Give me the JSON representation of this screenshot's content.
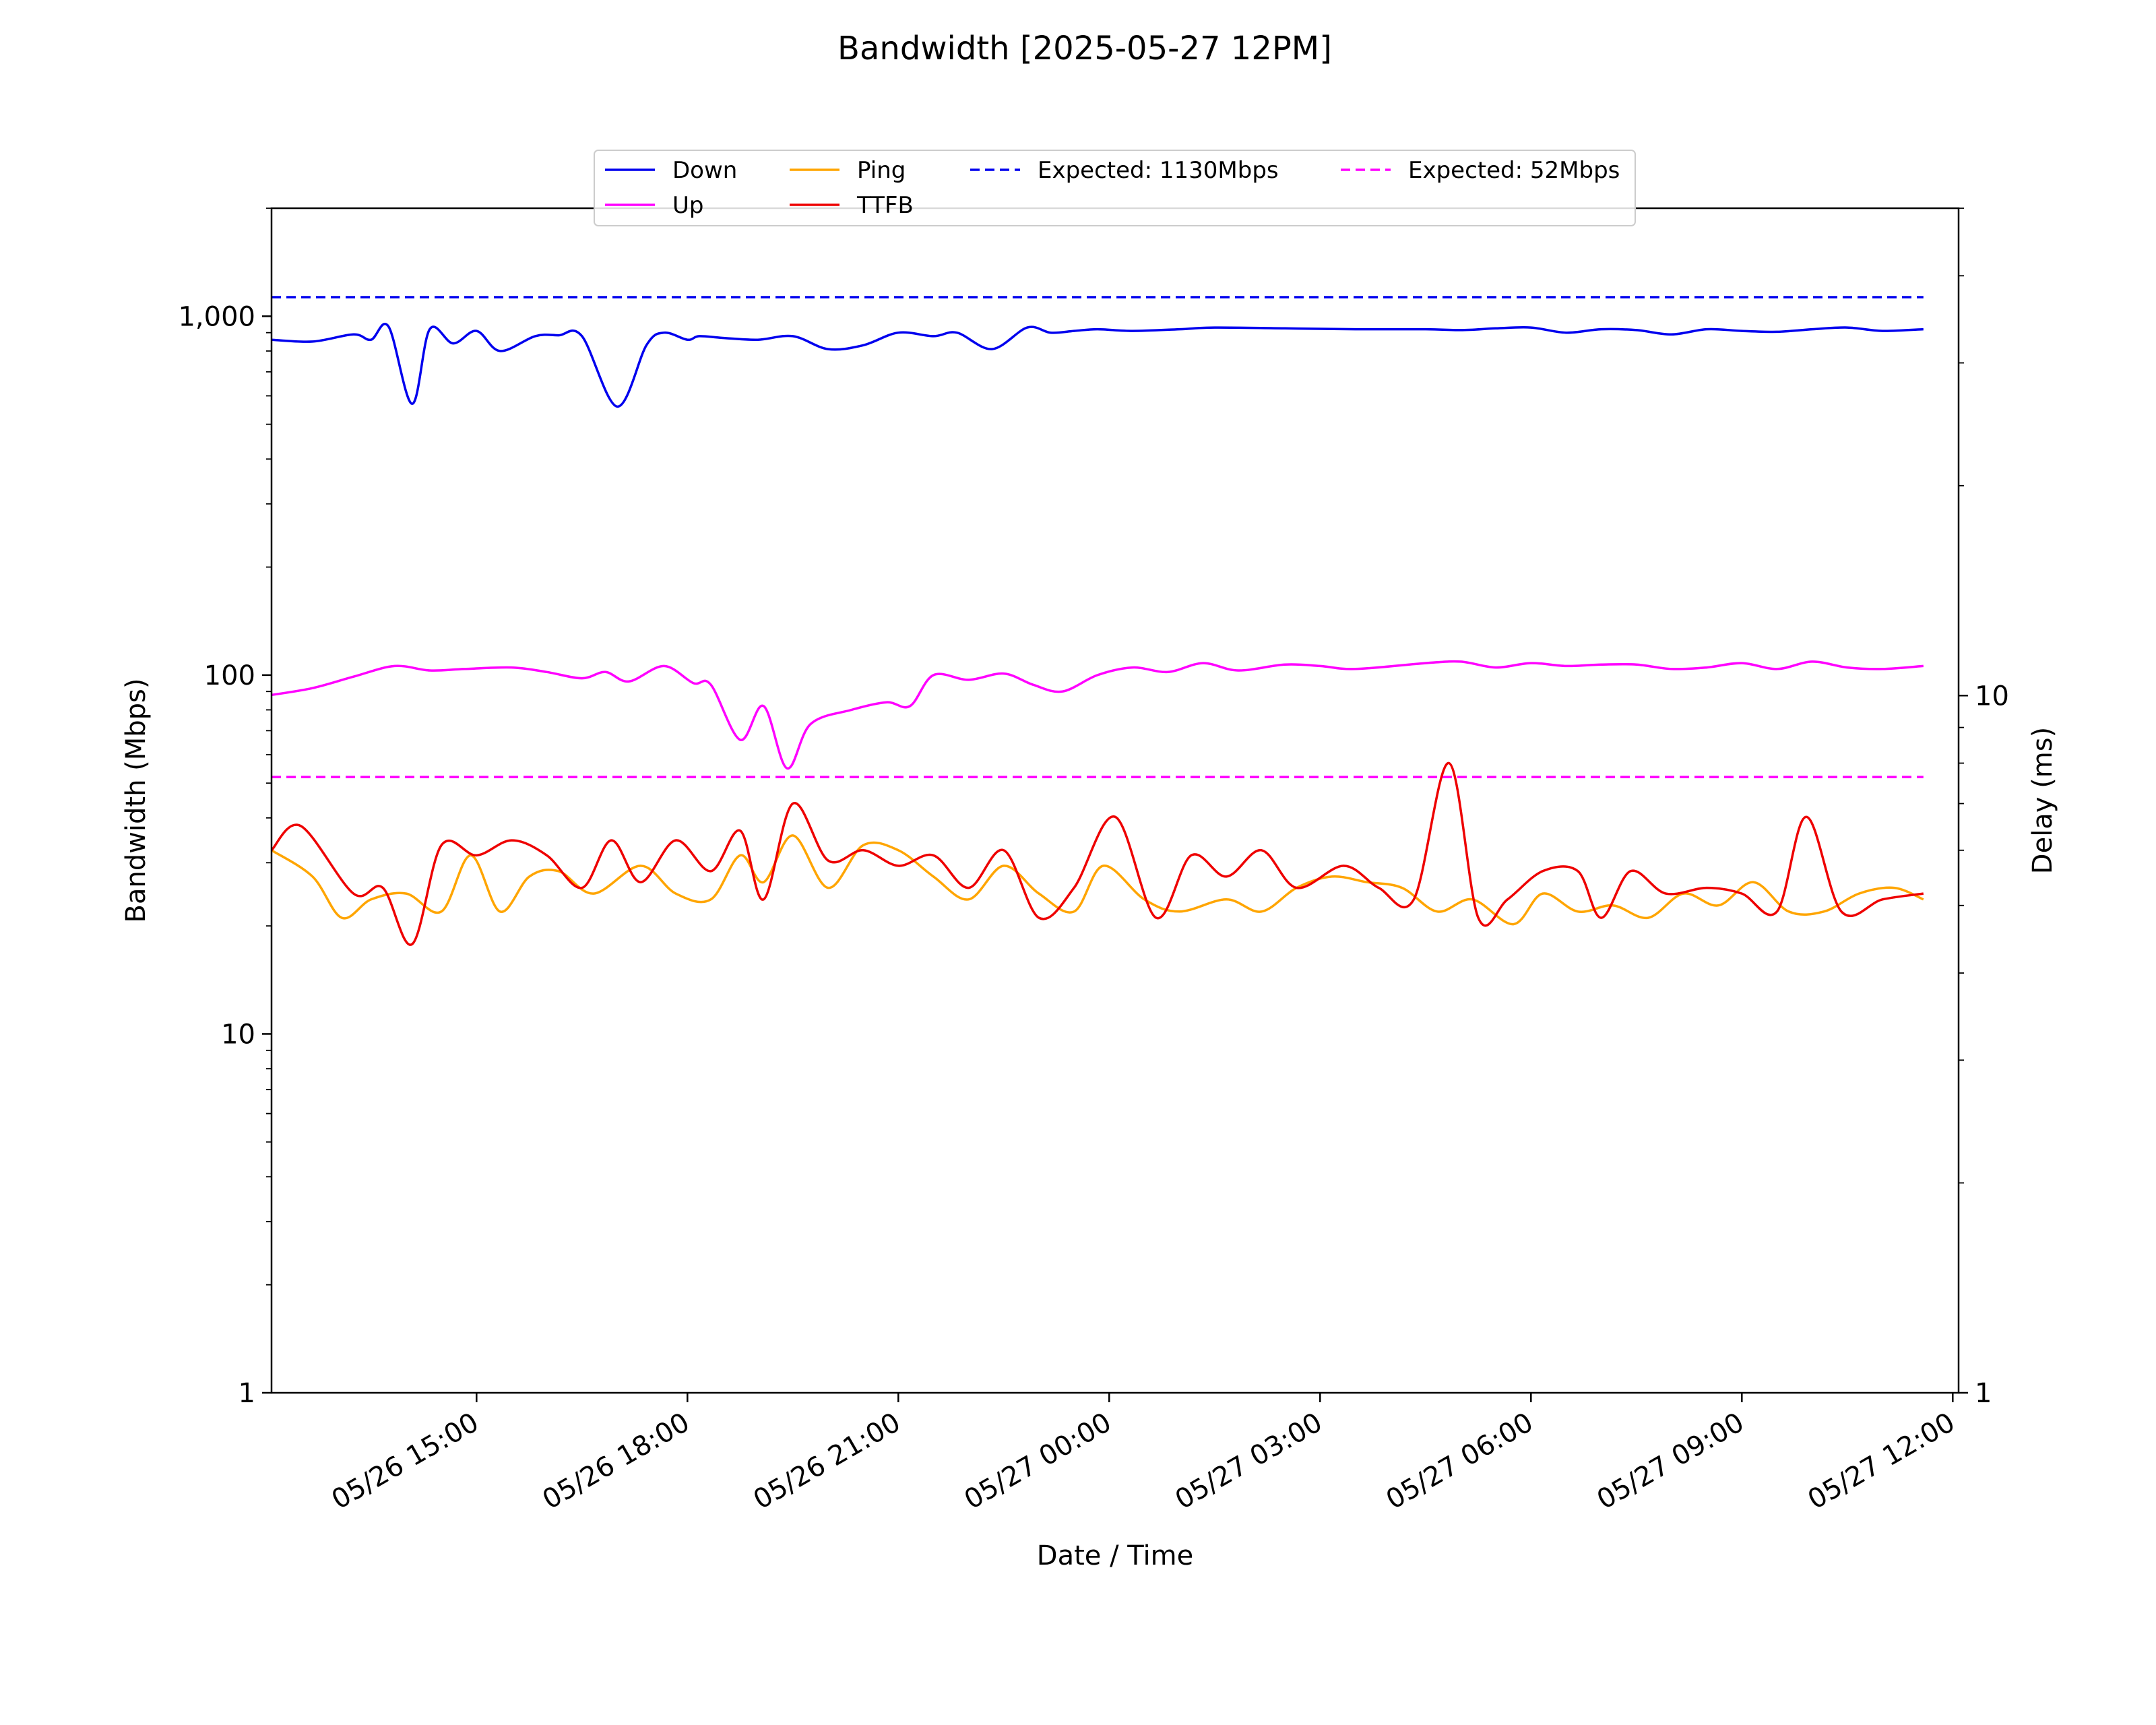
{
  "chart_data": {
    "type": "line",
    "title": "Bandwidth [2025-05-27 12PM]",
    "xlabel": "Date / Time",
    "ylabel": "Bandwidth (Mbps)",
    "y2label": "Delay (ms)",
    "yscale": "log",
    "y2scale": "log",
    "ylim": [
      1,
      2000
    ],
    "y2lim": [
      1,
      50
    ],
    "xlim": [
      "2025-05-26 12:05",
      "2025-05-27 12:05"
    ],
    "grid": false,
    "legend_position": "top-center",
    "x_ticks": [
      {
        "t": "2025-05-26 15:00",
        "label": "05/26 15:00"
      },
      {
        "t": "2025-05-26 18:00",
        "label": "05/26 18:00"
      },
      {
        "t": "2025-05-26 21:00",
        "label": "05/26 21:00"
      },
      {
        "t": "2025-05-27 00:00",
        "label": "05/27 00:00"
      },
      {
        "t": "2025-05-27 03:00",
        "label": "05/27 03:00"
      },
      {
        "t": "2025-05-27 06:00",
        "label": "05/27 06:00"
      },
      {
        "t": "2025-05-27 09:00",
        "label": "05/27 09:00"
      },
      {
        "t": "2025-05-27 12:00",
        "label": "05/27 12:00"
      }
    ],
    "y_ticks": [
      {
        "v": 1,
        "label": "1"
      },
      {
        "v": 10,
        "label": "10"
      },
      {
        "v": 100,
        "label": "100"
      },
      {
        "v": 1000,
        "label": "1,000"
      }
    ],
    "y2_ticks": [
      {
        "v": 1,
        "label": "1"
      },
      {
        "v": 10,
        "label": "10"
      }
    ],
    "legend": [
      {
        "label": "Down",
        "series": "down"
      },
      {
        "label": "Up",
        "series": "up"
      },
      {
        "label": "Ping",
        "series": "ping"
      },
      {
        "label": "TTFB",
        "series": "ttfb"
      },
      {
        "label": "Expected: 1130Mbps",
        "series": "exp_down"
      },
      {
        "label": "Expected: 52Mbps",
        "series": "exp_up"
      }
    ],
    "series": [
      {
        "key": "down",
        "name": "Down",
        "axis": "left",
        "color": "#0000ee",
        "style": "solid",
        "x": [
          "2025-05-26 12:05",
          "2025-05-26 12:40",
          "2025-05-26 13:15",
          "2025-05-26 13:30",
          "2025-05-26 13:45",
          "2025-05-26 14:05",
          "2025-05-26 14:20",
          "2025-05-26 14:40",
          "2025-05-26 15:00",
          "2025-05-26 15:20",
          "2025-05-26 15:50",
          "2025-05-26 16:10",
          "2025-05-26 16:30",
          "2025-05-26 17:00",
          "2025-05-26 17:25",
          "2025-05-26 17:40",
          "2025-05-26 18:00",
          "2025-05-26 18:10",
          "2025-05-26 18:30",
          "2025-05-26 19:00",
          "2025-05-26 19:30",
          "2025-05-26 20:00",
          "2025-05-26 20:30",
          "2025-05-26 21:00",
          "2025-05-26 21:30",
          "2025-05-26 21:50",
          "2025-05-26 22:20",
          "2025-05-26 22:50",
          "2025-05-26 23:10",
          "2025-05-26 23:30",
          "2025-05-26 23:50",
          "2025-05-27 00:20",
          "2025-05-27 01:00",
          "2025-05-27 01:30",
          "2025-05-27 02:30",
          "2025-05-27 03:30",
          "2025-05-27 04:30",
          "2025-05-27 05:00",
          "2025-05-27 05:30",
          "2025-05-27 06:00",
          "2025-05-27 06:30",
          "2025-05-27 07:00",
          "2025-05-27 07:30",
          "2025-05-27 08:00",
          "2025-05-27 08:30",
          "2025-05-27 09:00",
          "2025-05-27 09:30",
          "2025-05-27 10:00",
          "2025-05-27 10:30",
          "2025-05-27 11:00",
          "2025-05-27 11:35"
        ],
        "values": [
          860,
          850,
          890,
          860,
          935,
          570,
          920,
          840,
          910,
          800,
          880,
          885,
          880,
          560,
          830,
          900,
          860,
          880,
          870,
          860,
          880,
          810,
          830,
          900,
          880,
          900,
          810,
          930,
          900,
          910,
          920,
          910,
          920,
          930,
          925,
          920,
          920,
          915,
          925,
          930,
          900,
          920,
          915,
          890,
          920,
          910,
          905,
          920,
          930,
          910,
          920
        ]
      },
      {
        "key": "up",
        "name": "Up",
        "axis": "left",
        "color": "#ff00ff",
        "style": "solid",
        "x": [
          "2025-05-26 12:05",
          "2025-05-26 12:40",
          "2025-05-26 13:15",
          "2025-05-26 13:50",
          "2025-05-26 14:20",
          "2025-05-26 14:50",
          "2025-05-26 15:30",
          "2025-05-26 16:00",
          "2025-05-26 16:30",
          "2025-05-26 16:50",
          "2025-05-26 17:10",
          "2025-05-26 17:40",
          "2025-05-26 18:05",
          "2025-05-26 18:20",
          "2025-05-26 18:45",
          "2025-05-26 19:05",
          "2025-05-26 19:25",
          "2025-05-26 19:45",
          "2025-05-26 20:20",
          "2025-05-26 20:50",
          "2025-05-26 21:10",
          "2025-05-26 21:30",
          "2025-05-26 22:00",
          "2025-05-26 22:30",
          "2025-05-26 22:55",
          "2025-05-26 23:20",
          "2025-05-26 23:50",
          "2025-05-27 00:20",
          "2025-05-27 00:50",
          "2025-05-27 01:20",
          "2025-05-27 01:50",
          "2025-05-27 02:30",
          "2025-05-27 03:00",
          "2025-05-27 03:30",
          "2025-05-27 04:30",
          "2025-05-27 05:00",
          "2025-05-27 05:30",
          "2025-05-27 06:00",
          "2025-05-27 06:30",
          "2025-05-27 07:00",
          "2025-05-27 07:30",
          "2025-05-27 08:00",
          "2025-05-27 08:30",
          "2025-05-27 09:00",
          "2025-05-27 09:30",
          "2025-05-27 10:00",
          "2025-05-27 10:30",
          "2025-05-27 11:00",
          "2025-05-27 11:35"
        ],
        "values": [
          88,
          92,
          99,
          106,
          103,
          104,
          105,
          102,
          98,
          102,
          96,
          106,
          95,
          94,
          66,
          82,
          55,
          73,
          80,
          84,
          82,
          100,
          97,
          101,
          94,
          90,
          100,
          105,
          102,
          108,
          103,
          107,
          106,
          104,
          108,
          109,
          105,
          108,
          106,
          107,
          107,
          104,
          105,
          108,
          104,
          109,
          105,
          104,
          106
        ]
      },
      {
        "key": "ping",
        "name": "Ping",
        "axis": "right",
        "color": "#ffa500",
        "style": "solid",
        "x": [
          "2025-05-26 12:05",
          "2025-05-26 12:40",
          "2025-05-26 13:05",
          "2025-05-26 13:30",
          "2025-05-26 14:00",
          "2025-05-26 14:30",
          "2025-05-26 14:55",
          "2025-05-26 15:20",
          "2025-05-26 15:45",
          "2025-05-26 16:10",
          "2025-05-26 16:40",
          "2025-05-26 17:20",
          "2025-05-26 17:50",
          "2025-05-26 18:20",
          "2025-05-26 18:45",
          "2025-05-26 19:05",
          "2025-05-26 19:30",
          "2025-05-26 20:00",
          "2025-05-26 20:30",
          "2025-05-26 21:00",
          "2025-05-26 21:30",
          "2025-05-26 22:00",
          "2025-05-26 22:30",
          "2025-05-26 23:00",
          "2025-05-26 23:30",
          "2025-05-26 23:55",
          "2025-05-27 00:30",
          "2025-05-27 01:00",
          "2025-05-27 01:40",
          "2025-05-27 02:10",
          "2025-05-27 02:40",
          "2025-05-27 03:10",
          "2025-05-27 03:40",
          "2025-05-27 04:10",
          "2025-05-27 04:40",
          "2025-05-27 05:10",
          "2025-05-27 05:45",
          "2025-05-27 06:10",
          "2025-05-27 06:40",
          "2025-05-27 07:10",
          "2025-05-27 07:40",
          "2025-05-27 08:10",
          "2025-05-27 08:40",
          "2025-05-27 09:10",
          "2025-05-27 09:40",
          "2025-05-27 10:10",
          "2025-05-27 10:40",
          "2025-05-27 11:10",
          "2025-05-27 11:35"
        ],
        "values": [
          6.0,
          5.5,
          4.8,
          5.1,
          5.2,
          4.9,
          5.9,
          4.9,
          5.5,
          5.6,
          5.2,
          5.7,
          5.2,
          5.1,
          5.9,
          5.4,
          6.3,
          5.3,
          6.1,
          6.0,
          5.5,
          5.1,
          5.7,
          5.2,
          4.9,
          5.7,
          5.1,
          4.9,
          5.1,
          4.9,
          5.3,
          5.5,
          5.4,
          5.3,
          4.9,
          5.1,
          4.7,
          5.2,
          4.9,
          5.0,
          4.8,
          5.2,
          5.0,
          5.4,
          4.9,
          4.9,
          5.2,
          5.3,
          5.1
        ]
      },
      {
        "key": "ttfb",
        "name": "TTFB",
        "axis": "right",
        "color": "#ee0000",
        "style": "solid",
        "x": [
          "2025-05-26 12:05",
          "2025-05-26 12:30",
          "2025-05-26 13:15",
          "2025-05-26 13:40",
          "2025-05-26 14:05",
          "2025-05-26 14:30",
          "2025-05-26 15:00",
          "2025-05-26 15:30",
          "2025-05-26 16:00",
          "2025-05-26 16:30",
          "2025-05-26 16:55",
          "2025-05-26 17:20",
          "2025-05-26 17:50",
          "2025-05-26 18:20",
          "2025-05-26 18:45",
          "2025-05-26 19:05",
          "2025-05-26 19:30",
          "2025-05-26 20:00",
          "2025-05-26 20:30",
          "2025-05-26 21:00",
          "2025-05-26 21:30",
          "2025-05-26 22:00",
          "2025-05-26 22:30",
          "2025-05-26 23:00",
          "2025-05-26 23:30",
          "2025-05-27 00:05",
          "2025-05-27 00:40",
          "2025-05-27 01:10",
          "2025-05-27 01:40",
          "2025-05-27 02:10",
          "2025-05-27 02:40",
          "2025-05-27 03:20",
          "2025-05-27 03:50",
          "2025-05-27 04:20",
          "2025-05-27 04:50",
          "2025-05-27 05:15",
          "2025-05-27 05:40",
          "2025-05-27 06:10",
          "2025-05-27 06:40",
          "2025-05-27 07:00",
          "2025-05-27 07:25",
          "2025-05-27 07:55",
          "2025-05-27 08:30",
          "2025-05-27 09:00",
          "2025-05-27 09:30",
          "2025-05-27 09:55",
          "2025-05-27 10:25",
          "2025-05-27 11:00",
          "2025-05-27 11:35"
        ],
        "values": [
          6.0,
          6.5,
          5.2,
          5.3,
          4.4,
          6.1,
          5.9,
          6.2,
          5.9,
          5.3,
          6.2,
          5.4,
          6.2,
          5.6,
          6.4,
          5.1,
          7.0,
          5.8,
          6.0,
          5.7,
          5.9,
          5.3,
          6.0,
          4.8,
          5.3,
          6.7,
          4.8,
          5.9,
          5.5,
          6.0,
          5.3,
          5.7,
          5.3,
          5.1,
          8.0,
          4.8,
          5.1,
          5.6,
          5.6,
          4.8,
          5.6,
          5.2,
          5.3,
          5.2,
          4.9,
          6.7,
          4.9,
          5.1,
          5.2
        ]
      },
      {
        "key": "exp_down",
        "name": "Expected: 1130Mbps",
        "axis": "left",
        "color": "#0000ee",
        "style": "dashed",
        "x": [
          "2025-05-26 12:05",
          "2025-05-27 11:35"
        ],
        "values": [
          1130,
          1130
        ]
      },
      {
        "key": "exp_up",
        "name": "Expected: 52Mbps",
        "axis": "left",
        "color": "#ff00ff",
        "style": "dashed",
        "x": [
          "2025-05-26 12:05",
          "2025-05-27 11:35"
        ],
        "values": [
          52,
          52
        ]
      }
    ]
  }
}
